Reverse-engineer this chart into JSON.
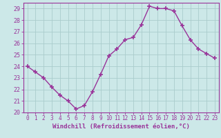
{
  "x": [
    0,
    1,
    2,
    3,
    4,
    5,
    6,
    7,
    8,
    9,
    10,
    11,
    12,
    13,
    14,
    15,
    16,
    17,
    18,
    19,
    20,
    21,
    22,
    23
  ],
  "y": [
    24.0,
    23.5,
    23.0,
    22.2,
    21.5,
    21.0,
    20.3,
    20.6,
    21.8,
    23.3,
    24.9,
    25.5,
    26.3,
    26.5,
    27.6,
    29.2,
    29.0,
    29.0,
    28.8,
    27.5,
    26.3,
    25.5,
    25.1,
    24.7
  ],
  "line_color": "#993399",
  "marker": "+",
  "markersize": 4,
  "markeredgewidth": 1.2,
  "linewidth": 1.0,
  "bg_color": "#cce8e8",
  "grid_color": "#aacccc",
  "axis_color": "#993399",
  "xlabel": "Windchill (Refroidissement éolien,°C)",
  "xlabel_fontsize": 6.5,
  "tick_fontsize": 6,
  "ylim": [
    20,
    29.5
  ],
  "xlim": [
    -0.5,
    23.5
  ],
  "yticks": [
    20,
    21,
    22,
    23,
    24,
    25,
    26,
    27,
    28,
    29
  ],
  "xticks": [
    0,
    1,
    2,
    3,
    4,
    5,
    6,
    7,
    8,
    9,
    10,
    11,
    12,
    13,
    14,
    15,
    16,
    17,
    18,
    19,
    20,
    21,
    22,
    23
  ]
}
